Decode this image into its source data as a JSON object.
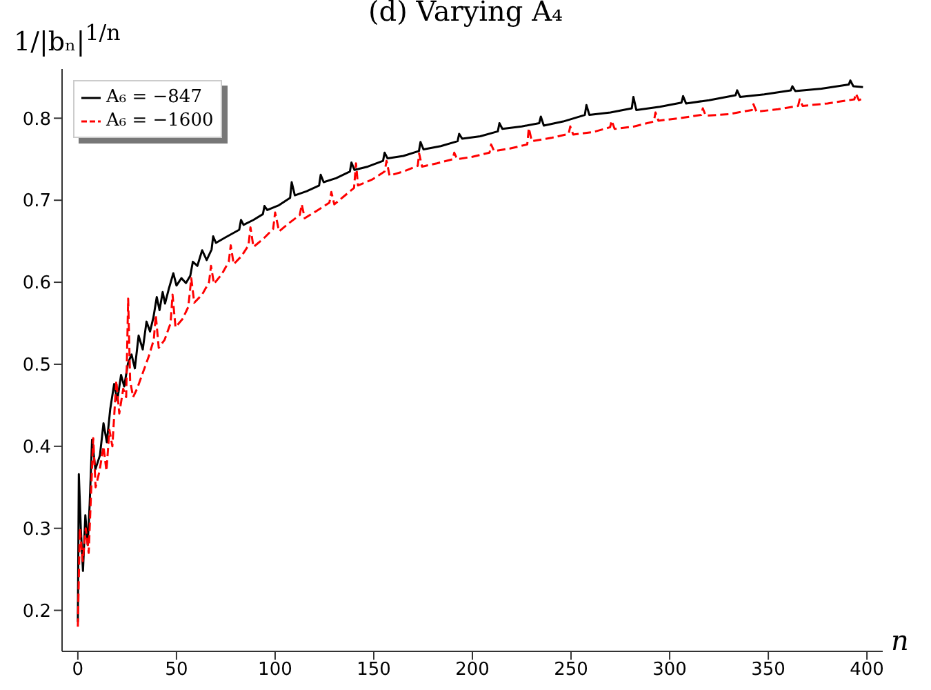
{
  "chart_data": {
    "type": "line",
    "title": "(d) Varying A₄",
    "xlabel": "n",
    "ylabel": "1/|bₙ|$^{1/n}$",
    "xlim": [
      -8,
      408
    ],
    "xticks": [
      0,
      50,
      100,
      150,
      200,
      250,
      300,
      350,
      400
    ],
    "ylim": [
      0.15,
      0.86
    ],
    "yticks": [
      0.2,
      0.3,
      0.4,
      0.5,
      0.6,
      0.7,
      0.8
    ],
    "legend": "top left",
    "series": [
      {
        "name": "A₆ = −847",
        "color": "#000000",
        "line_style": "solid",
        "x": [
          0,
          0.5,
          1.5,
          2.6,
          3.8,
          5,
          6,
          7.2,
          8.9,
          11.2,
          13,
          14.7,
          16.4,
          18.4,
          20,
          21.9,
          23.5,
          25.4,
          27.2,
          28.9,
          30.8,
          32.9,
          34.8,
          36.6,
          38.3,
          40,
          41.4,
          43,
          44.2,
          46,
          48.4,
          50,
          52.5,
          54.8,
          57,
          58.3,
          60.6,
          63,
          65.3,
          67.8,
          68.6,
          70,
          75,
          81.8,
          82.7,
          84,
          89,
          93.8,
          94.6,
          96,
          102,
          107.6,
          108.4,
          110,
          116,
          122.3,
          123.1,
          124.6,
          131,
          137.9,
          138.7,
          140.2,
          147,
          154.7,
          155.5,
          157,
          165,
          172.9,
          173.7,
          175.2,
          184,
          192.5,
          193.3,
          194.8,
          204,
          212.9,
          213.7,
          215.2,
          225,
          233.9,
          234.7,
          236.2,
          246,
          257,
          257.8,
          259.3,
          270,
          280.8,
          281.6,
          283.1,
          295,
          306,
          306.8,
          308.3,
          320,
          333.4,
          334.2,
          335.7,
          348,
          361.4,
          362.2,
          363.7,
          377,
          390.8,
          391.6,
          393.1,
          398
        ],
        "values": [
          0.186,
          0.366,
          0.3,
          0.248,
          0.316,
          0.28,
          0.33,
          0.408,
          0.372,
          0.389,
          0.428,
          0.405,
          0.445,
          0.476,
          0.456,
          0.487,
          0.473,
          0.501,
          0.512,
          0.495,
          0.535,
          0.518,
          0.552,
          0.54,
          0.557,
          0.582,
          0.566,
          0.588,
          0.574,
          0.591,
          0.611,
          0.596,
          0.605,
          0.599,
          0.608,
          0.625,
          0.62,
          0.639,
          0.627,
          0.64,
          0.656,
          0.648,
          0.655,
          0.664,
          0.676,
          0.67,
          0.676,
          0.683,
          0.693,
          0.688,
          0.694,
          0.703,
          0.722,
          0.706,
          0.711,
          0.718,
          0.731,
          0.722,
          0.727,
          0.735,
          0.746,
          0.737,
          0.741,
          0.748,
          0.758,
          0.751,
          0.754,
          0.76,
          0.771,
          0.762,
          0.766,
          0.772,
          0.781,
          0.775,
          0.778,
          0.784,
          0.794,
          0.787,
          0.79,
          0.794,
          0.802,
          0.791,
          0.796,
          0.804,
          0.816,
          0.804,
          0.807,
          0.812,
          0.826,
          0.81,
          0.814,
          0.819,
          0.827,
          0.818,
          0.822,
          0.828,
          0.834,
          0.826,
          0.829,
          0.834,
          0.839,
          0.833,
          0.836,
          0.841,
          0.846,
          0.839,
          0.838
        ]
      },
      {
        "name": "A₆ = −1600",
        "color": "#ff0000",
        "line_style": "dashed",
        "x": [
          0,
          1,
          2.5,
          4,
          5.5,
          7.8,
          9,
          11,
          13,
          14.5,
          16,
          17.5,
          19.5,
          21,
          23,
          24.5,
          25.5,
          26.5,
          28,
          30,
          33,
          36,
          38.5,
          39.5,
          41,
          44,
          47,
          48,
          49.5,
          53,
          56,
          57.5,
          59,
          63,
          66.5,
          67.5,
          69,
          73,
          76.5,
          77.5,
          79,
          83,
          86.5,
          87.5,
          89,
          94,
          99,
          100,
          102,
          107,
          112.5,
          113.5,
          115,
          121,
          127.5,
          128.5,
          130,
          135,
          140,
          141,
          142,
          149,
          155.5,
          156.5,
          158,
          165,
          172.3,
          173,
          174.5,
          182,
          190,
          190.8,
          192.3,
          200,
          208.7,
          209.5,
          211,
          219,
          227.8,
          228.6,
          230.1,
          240,
          248.8,
          249.6,
          251.1,
          261,
          269.8,
          270.6,
          272.1,
          282,
          292,
          292.8,
          294.3,
          305,
          316,
          316.8,
          318.3,
          330,
          341.7,
          342.5,
          344,
          355,
          365.1,
          365.9,
          367.4,
          380,
          393.6,
          394.4,
          395.9,
          398
        ],
        "values": [
          0.18,
          0.3,
          0.26,
          0.3,
          0.27,
          0.41,
          0.35,
          0.37,
          0.4,
          0.37,
          0.42,
          0.4,
          0.48,
          0.44,
          0.47,
          0.46,
          0.58,
          0.48,
          0.46,
          0.47,
          0.49,
          0.51,
          0.53,
          0.56,
          0.52,
          0.53,
          0.55,
          0.585,
          0.545,
          0.555,
          0.57,
          0.605,
          0.575,
          0.585,
          0.6,
          0.62,
          0.598,
          0.61,
          0.625,
          0.645,
          0.622,
          0.632,
          0.645,
          0.667,
          0.643,
          0.653,
          0.665,
          0.685,
          0.662,
          0.672,
          0.682,
          0.695,
          0.678,
          0.687,
          0.697,
          0.71,
          0.695,
          0.705,
          0.715,
          0.745,
          0.718,
          0.725,
          0.735,
          0.748,
          0.73,
          0.735,
          0.742,
          0.757,
          0.741,
          0.745,
          0.75,
          0.758,
          0.75,
          0.753,
          0.758,
          0.768,
          0.76,
          0.763,
          0.768,
          0.788,
          0.772,
          0.776,
          0.781,
          0.79,
          0.78,
          0.783,
          0.789,
          0.797,
          0.787,
          0.79,
          0.796,
          0.807,
          0.797,
          0.8,
          0.804,
          0.812,
          0.803,
          0.805,
          0.81,
          0.817,
          0.808,
          0.811,
          0.815,
          0.823,
          0.815,
          0.818,
          0.823,
          0.83,
          0.822,
          0.824
        ]
      }
    ]
  }
}
